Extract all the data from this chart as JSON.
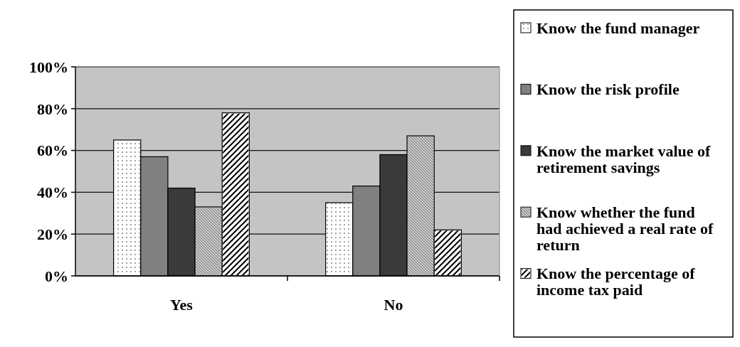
{
  "chart_data": {
    "type": "bar",
    "categories": [
      "Yes",
      "No"
    ],
    "series": [
      {
        "name": "Know the fund manager",
        "color": "#ffffff",
        "values": [
          65,
          35
        ]
      },
      {
        "name": "Know the risk profile",
        "color": "#808080",
        "values": [
          57,
          43
        ]
      },
      {
        "name": "Know the market value of retirement savings",
        "color": "#3a3a3a",
        "values": [
          42,
          58
        ]
      },
      {
        "name": "Know whether the fund had achieved a real rate of return",
        "color": "#c8c8c8",
        "values": [
          33,
          67
        ]
      },
      {
        "name": "Know the percentage of income tax paid",
        "color": "#ffffff",
        "values": [
          78,
          22
        ]
      }
    ],
    "ylim": [
      0,
      100
    ],
    "yticks": [
      {
        "value": 0,
        "label": "0%"
      },
      {
        "value": 20,
        "label": "20%"
      },
      {
        "value": 40,
        "label": "40%"
      },
      {
        "value": 60,
        "label": "60%"
      },
      {
        "value": 80,
        "label": "80%"
      },
      {
        "value": 100,
        "label": "100%"
      }
    ],
    "grid": "y",
    "legend": "right"
  }
}
